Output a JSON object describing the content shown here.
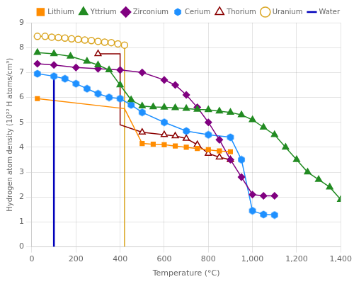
{
  "chart_data": {
    "type": "line",
    "xlabel": "Temperature (°C)",
    "ylabel": "Hydrogen atom density (10²² H atoms/cm³)",
    "xlim": [
      0,
      1400
    ],
    "ylim": [
      0,
      9
    ],
    "xticks": [
      0,
      200,
      400,
      600,
      800,
      1000,
      1200,
      1400
    ],
    "yticks": [
      0,
      1,
      2,
      3,
      4,
      5,
      6,
      7,
      8,
      9
    ],
    "grid": true,
    "legend": "upper right",
    "series": [
      {
        "name": "Water",
        "color": "#0000BB",
        "marker": "none",
        "x": [
          100,
          100
        ],
        "values": [
          6.75,
          0.0
        ]
      },
      {
        "name": "Lithium",
        "color": "#FF8C00",
        "marker": "square",
        "x": [
          25,
          420,
          500,
          550,
          600,
          650,
          700,
          750,
          800,
          850,
          900
        ],
        "values": [
          5.95,
          5.55,
          4.15,
          4.12,
          4.1,
          4.05,
          4.0,
          3.95,
          3.9,
          3.85,
          3.82
        ],
        "marker_x": [
          25,
          500,
          550,
          600,
          650,
          700,
          750,
          800,
          850,
          900
        ],
        "marker_values": [
          5.95,
          4.15,
          4.12,
          4.1,
          4.05,
          4.0,
          3.95,
          3.9,
          3.85,
          3.82
        ]
      },
      {
        "name": "Yttrium",
        "color": "#228B22",
        "marker": "triangle",
        "x": [
          25,
          100,
          175,
          250,
          300,
          350,
          400,
          450,
          500,
          550,
          600,
          650,
          700,
          750,
          800,
          850,
          900,
          950,
          1000,
          1050,
          1100,
          1150,
          1200,
          1250,
          1300,
          1350,
          1400
        ],
        "values": [
          7.8,
          7.75,
          7.65,
          7.45,
          7.3,
          7.1,
          6.5,
          5.9,
          5.65,
          5.62,
          5.6,
          5.58,
          5.55,
          5.52,
          5.5,
          5.45,
          5.4,
          5.3,
          5.1,
          4.8,
          4.5,
          4.0,
          3.5,
          3.0,
          2.7,
          2.4,
          1.9
        ]
      },
      {
        "name": "Zirconium",
        "color": "#800080",
        "marker": "diamond",
        "x": [
          25,
          100,
          200,
          300,
          400,
          500,
          600,
          650,
          700,
          750,
          800,
          850,
          900,
          950,
          1000,
          1050,
          1100
        ],
        "values": [
          7.35,
          7.3,
          7.2,
          7.15,
          7.1,
          7.0,
          6.7,
          6.5,
          6.1,
          5.6,
          5.0,
          4.3,
          3.5,
          2.8,
          2.1,
          2.05,
          2.05
        ]
      },
      {
        "name": "Cerium",
        "color": "#1E90FF",
        "marker": "hexagon",
        "x": [
          25,
          100,
          150,
          200,
          250,
          300,
          350,
          400,
          450,
          500,
          600,
          700,
          800,
          900,
          950,
          1000,
          1050,
          1100
        ],
        "values": [
          6.95,
          6.85,
          6.75,
          6.55,
          6.35,
          6.15,
          6.0,
          5.95,
          5.7,
          5.4,
          5.0,
          4.65,
          4.5,
          4.4,
          3.5,
          1.45,
          1.3,
          1.28
        ]
      },
      {
        "name": "Thorium",
        "color": "#8B0000",
        "marker": "triangle_open",
        "x": [
          300,
          400,
          400,
          500,
          600,
          650,
          700,
          750,
          800,
          850,
          900
        ],
        "values": [
          7.75,
          7.75,
          4.9,
          4.6,
          4.5,
          4.45,
          4.35,
          4.1,
          3.75,
          3.6,
          3.5
        ],
        "marker_x": [
          300,
          500,
          600,
          650,
          700,
          750,
          800,
          850,
          900
        ],
        "marker_values": [
          7.75,
          4.6,
          4.5,
          4.45,
          4.35,
          4.1,
          3.75,
          3.6,
          3.5
        ]
      },
      {
        "name": "Uranium",
        "color": "#DAA520",
        "marker": "circle_open",
        "x": [
          25,
          60,
          90,
          120,
          150,
          180,
          210,
          240,
          270,
          300,
          330,
          360,
          390,
          420,
          420
        ],
        "values": [
          8.45,
          8.45,
          8.42,
          8.4,
          8.38,
          8.35,
          8.33,
          8.3,
          8.28,
          8.25,
          8.22,
          8.2,
          8.15,
          8.1,
          0.0
        ],
        "marker_x": [
          25,
          60,
          90,
          120,
          150,
          180,
          210,
          240,
          270,
          300,
          330,
          360,
          390,
          420
        ],
        "marker_values": [
          8.45,
          8.45,
          8.42,
          8.4,
          8.38,
          8.35,
          8.33,
          8.3,
          8.28,
          8.25,
          8.22,
          8.2,
          8.15,
          8.1
        ]
      }
    ]
  }
}
